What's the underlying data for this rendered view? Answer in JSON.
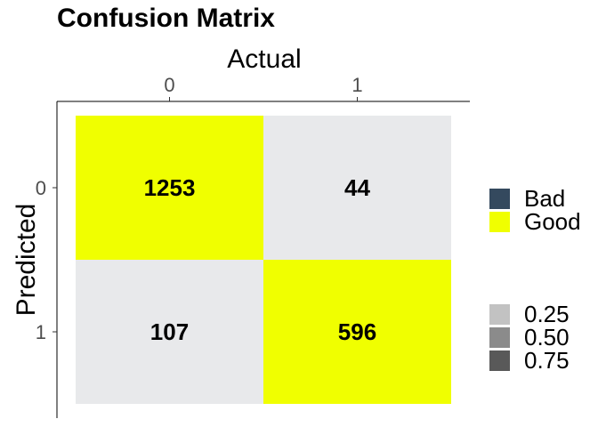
{
  "chart_data": {
    "type": "heatmap",
    "title": "Confusion Matrix",
    "xlabel": "Actual",
    "ylabel": "Predicted",
    "x_categories": [
      "0",
      "1"
    ],
    "y_categories": [
      "0",
      "1"
    ],
    "x_axis_position": "top",
    "cells": [
      {
        "predicted": "0",
        "actual": "0",
        "value": 1253,
        "label": "1253",
        "class": "Good",
        "alpha": 0.63
      },
      {
        "predicted": "0",
        "actual": "1",
        "value": 44,
        "label": "44",
        "class": "Bad",
        "alpha": 0.02
      },
      {
        "predicted": "1",
        "actual": "0",
        "value": 107,
        "label": "107",
        "class": "Bad",
        "alpha": 0.05
      },
      {
        "predicted": "1",
        "actual": "1",
        "value": 596,
        "label": "596",
        "class": "Good",
        "alpha": 0.3
      }
    ],
    "fill_legend": [
      {
        "label": "Bad",
        "color": "#34495e"
      },
      {
        "label": "Good",
        "color": "#f0ff00"
      }
    ],
    "alpha_legend": [
      {
        "label": "0.25",
        "color": "#c2c2c2"
      },
      {
        "label": "0.50",
        "color": "#8b8b8b"
      },
      {
        "label": "0.75",
        "color": "#595959"
      }
    ],
    "colors": {
      "good_cell": "#f0ff00",
      "bad_cell": "#e8e9eb"
    },
    "legend_position": "right",
    "grid": false
  }
}
